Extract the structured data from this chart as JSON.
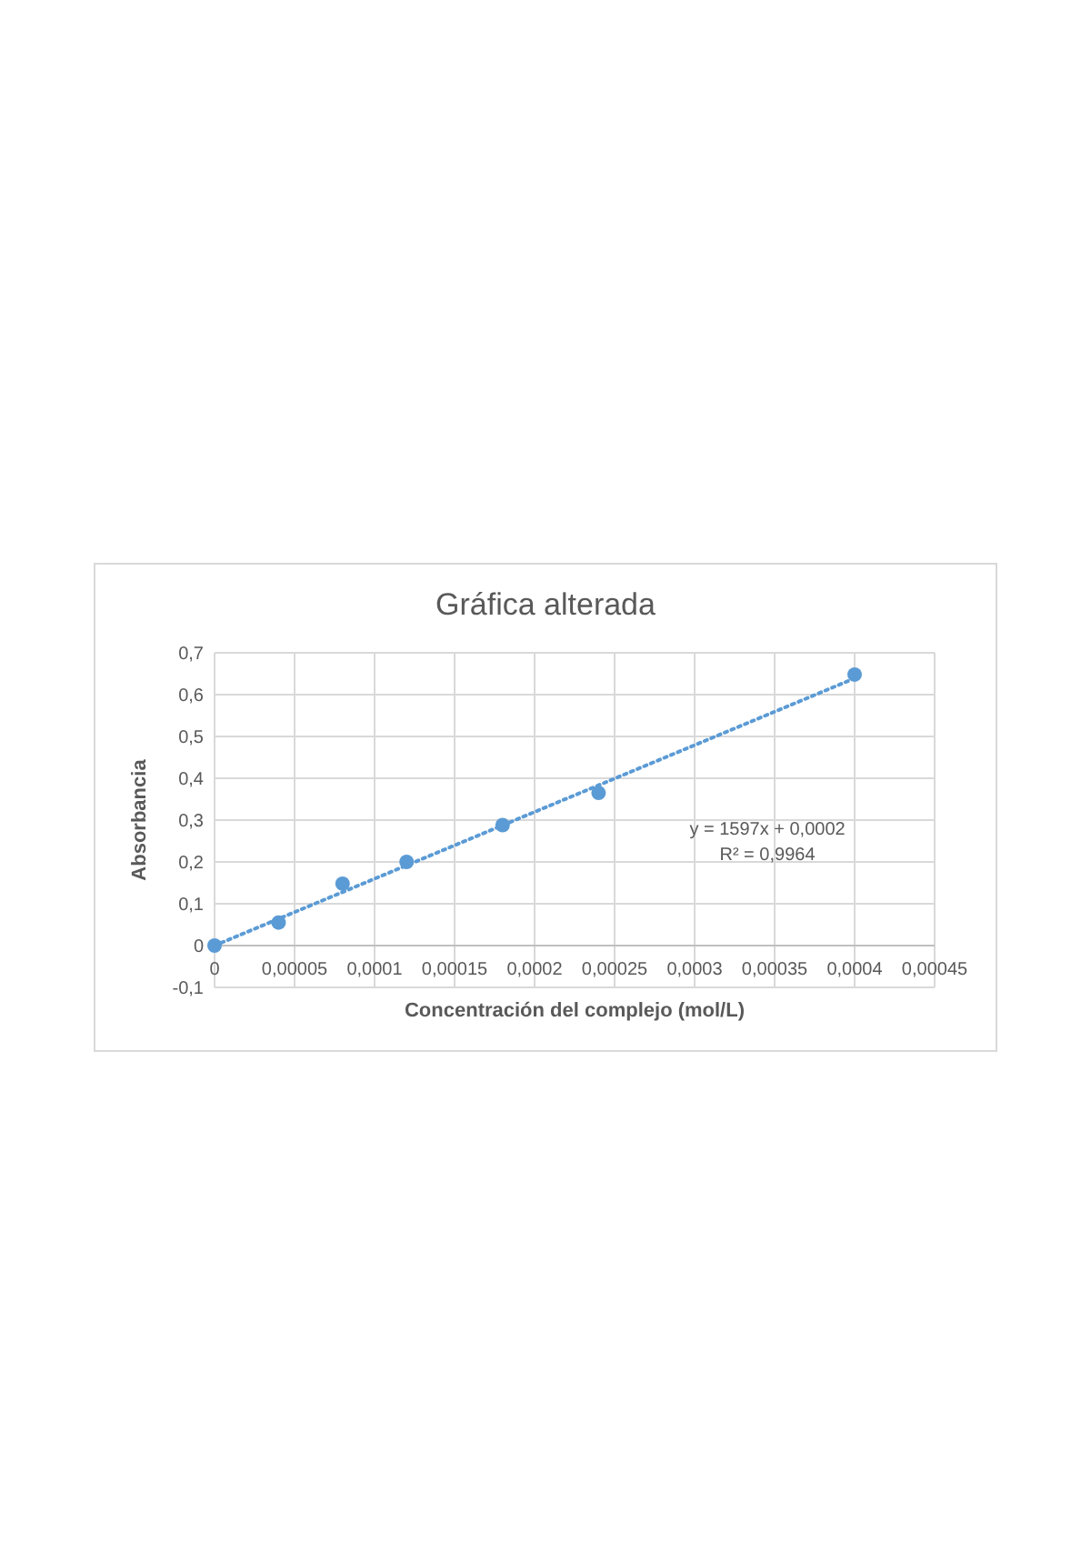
{
  "chart_data": {
    "type": "scatter",
    "title": "Gráfica alterada",
    "xlabel": "Concentración del complejo (mol/L)",
    "ylabel": "Absorbancia",
    "series": [
      {
        "color": "#5b9bd5",
        "marker": "circle",
        "x": [
          0,
          4e-05,
          8e-05,
          0.00012,
          0.00018,
          0.00024,
          0.0004
        ],
        "values": [
          0,
          0.055,
          0.148,
          0.2,
          0.288,
          0.365,
          0.648
        ]
      },
      {
        "type": "line",
        "color": "#5b9bd5",
        "marker": "none",
        "line_style": "dotted",
        "x": [
          0,
          0.0004
        ],
        "values": [
          0,
          0.639
        ]
      }
    ],
    "xlim": [
      0,
      0.00045
    ],
    "ylim": [
      -0.1,
      0.7
    ],
    "xticks": [
      0,
      {
        "value": 5e-05,
        "label": "0,00005"
      },
      {
        "value": 0.0001,
        "label": "0,0001"
      },
      {
        "value": 0.00015,
        "label": "0,00015"
      },
      {
        "value": 0.0002,
        "label": "0,0002"
      },
      {
        "value": 0.00025,
        "label": "0,00025"
      },
      {
        "value": 0.0003,
        "label": "0,0003"
      },
      {
        "value": 0.00035,
        "label": "0,00035"
      },
      {
        "value": 0.0004,
        "label": "0,0004"
      },
      {
        "value": 0.00045,
        "label": "0,00045"
      }
    ],
    "yticks": [
      {
        "value": -0.1,
        "label": "-0,1"
      },
      0,
      {
        "value": 0.1,
        "label": "0,1"
      },
      {
        "value": 0.2,
        "label": "0,2"
      },
      {
        "value": 0.3,
        "label": "0,3"
      },
      {
        "value": 0.4,
        "label": "0,4"
      },
      {
        "value": 0.5,
        "label": "0,5"
      },
      {
        "value": 0.6,
        "label": "0,6"
      },
      {
        "value": 0.7,
        "label": "0,7"
      }
    ],
    "grid": true,
    "annotations": [
      "y = 1597x + 0,0002",
      "R² = 0,9964"
    ]
  }
}
